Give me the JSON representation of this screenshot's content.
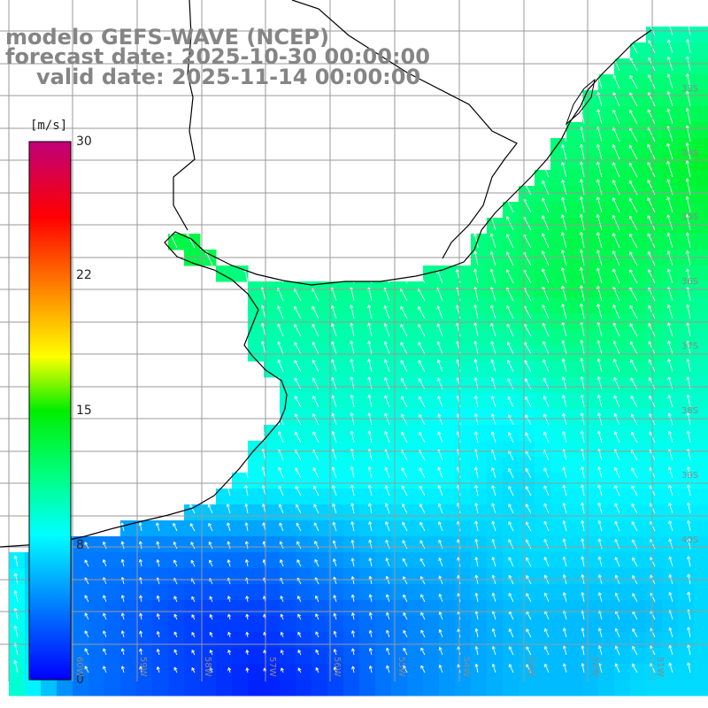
{
  "title": {
    "line1": "modelo GEFS-WAVE (NCEP)",
    "line2": "forecast date: 2025-10-30 00:00:00",
    "line3": "valid date: 2025-11-14 00:00:00"
  },
  "colorbar": {
    "unit": "[m/s]",
    "ticks": [
      "30",
      "22",
      "15",
      "8",
      "0"
    ],
    "tick_values": [
      30,
      22,
      15,
      8,
      0
    ],
    "min": 0,
    "max": 30,
    "colors": [
      "#0000ff",
      "#00aaff",
      "#00ffff",
      "#00ff00",
      "#ffff00",
      "#ff8800",
      "#ff0000",
      "#c0007a"
    ]
  },
  "lat_labels": [
    "33S",
    "34S",
    "35S",
    "36S",
    "37S",
    "38S",
    "39S",
    "40S"
  ],
  "lon_labels": [
    "60W",
    "59W",
    "58W",
    "57W",
    "56W",
    "55W",
    "54W",
    "53W",
    "52W",
    "51W"
  ],
  "chart_data": {
    "type": "heatmap",
    "variable": "wind speed",
    "unit": "[m/s]",
    "vmin": 0,
    "vmax": 30,
    "x": [
      -61,
      -60,
      -59,
      -58,
      -57,
      -56,
      -55,
      -54,
      -53,
      -52,
      -51,
      -50
    ],
    "y": [
      -31,
      -32,
      -33,
      -34,
      -35,
      -36,
      -37,
      -38,
      -39,
      -40,
      -41
    ],
    "values": [
      [
        null,
        null,
        null,
        null,
        null,
        null,
        null,
        null,
        null,
        null,
        10,
        10
      ],
      [
        null,
        null,
        null,
        null,
        null,
        null,
        null,
        null,
        null,
        11,
        12,
        12
      ],
      [
        null,
        null,
        null,
        null,
        null,
        null,
        null,
        null,
        11,
        12,
        13,
        14
      ],
      [
        null,
        null,
        null,
        13,
        12,
        11,
        11,
        11,
        12,
        13,
        13,
        13
      ],
      [
        null,
        null,
        null,
        null,
        11,
        11,
        11,
        11,
        12,
        13,
        12,
        11
      ],
      [
        null,
        null,
        null,
        null,
        10,
        10,
        10,
        10,
        10,
        11,
        11,
        10
      ],
      [
        null,
        null,
        null,
        9,
        9,
        9,
        9,
        8,
        8,
        9,
        9,
        9
      ],
      [
        null,
        null,
        8,
        8,
        8,
        8,
        8,
        8,
        7,
        8,
        8,
        8
      ],
      [
        8,
        4,
        4,
        4,
        4,
        5,
        6,
        6,
        7,
        7,
        7,
        7
      ],
      [
        9,
        4,
        3,
        2,
        2,
        3,
        4,
        5,
        6,
        6,
        6,
        7
      ],
      [
        10,
        4,
        3,
        2,
        1,
        2,
        4,
        5,
        6,
        6,
        7,
        7
      ]
    ],
    "wind_direction": "predominantly from south-southeast"
  }
}
